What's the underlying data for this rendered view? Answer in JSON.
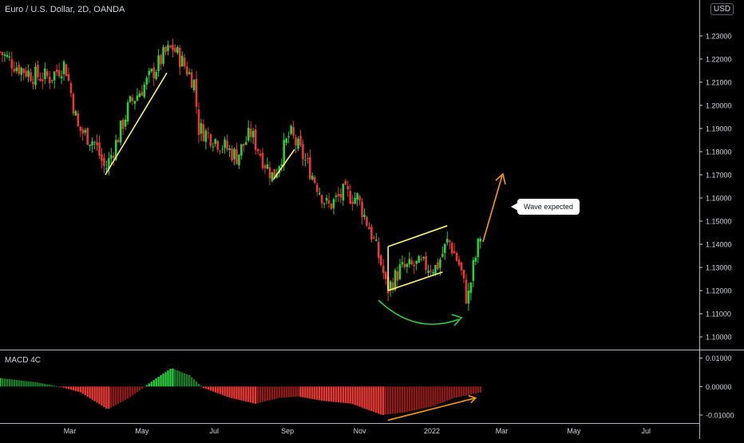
{
  "header": {
    "symbol_title": "Euro / U.S. Dollar, 2D, OANDA",
    "currency": "USD"
  },
  "indicator": {
    "title": "MACD 4C"
  },
  "annotation": {
    "text": "Wave expected"
  },
  "colors": {
    "background": "#000000",
    "up_candle": "#26a69a",
    "up_bright": "#2ecc40",
    "down_candle": "#e53935",
    "trendline": "#fff176",
    "curve_arrow": "#2ecc40",
    "expected_arrow": "#ff9800",
    "divergence_line": "#ff9800",
    "axis_text": "#d1d4dc",
    "separator": "#d1d4dc"
  },
  "chart_data": [
    {
      "type": "candlestick",
      "title": "Euro / U.S. Dollar, 2D, OANDA",
      "y_axis": {
        "position": "right",
        "ticks": [
          "1.23000",
          "1.22000",
          "1.21000",
          "1.20000",
          "1.19000",
          "1.18000",
          "1.17000",
          "1.16000",
          "1.15000",
          "1.14000",
          "1.13000",
          "1.12000",
          "1.11000",
          "1.10000"
        ],
        "ylim": [
          1.0945,
          1.2455
        ]
      },
      "x_axis": {
        "ticks": [
          "Mar",
          "May",
          "Jul",
          "Sep",
          "Nov",
          "2022",
          "Mar",
          "May",
          "Jul"
        ],
        "tick_dates": [
          "2021-03-01",
          "2021-05-01",
          "2021-07-01",
          "2021-09-01",
          "2021-11-01",
          "2022-01-01",
          "2022-03-01",
          "2022-05-01",
          "2022-07-01"
        ],
        "range": [
          "2021-01-01",
          "2022-08-15"
        ]
      },
      "close_series": [
        [
          "2021-01-01",
          1.223
        ],
        [
          "2021-01-15",
          1.217
        ],
        [
          "2021-01-29",
          1.213
        ],
        [
          "2021-02-12",
          1.212
        ],
        [
          "2021-02-25",
          1.218
        ],
        [
          "2021-03-08",
          1.19
        ],
        [
          "2021-03-22",
          1.184
        ],
        [
          "2021-03-31",
          1.172
        ],
        [
          "2021-04-10",
          1.185
        ],
        [
          "2021-04-20",
          1.2
        ],
        [
          "2021-05-05",
          1.21
        ],
        [
          "2021-05-20",
          1.222
        ],
        [
          "2021-05-27",
          1.225
        ],
        [
          "2021-06-05",
          1.218
        ],
        [
          "2021-06-14",
          1.21
        ],
        [
          "2021-06-18",
          1.19
        ],
        [
          "2021-06-30",
          1.186
        ],
        [
          "2021-07-10",
          1.182
        ],
        [
          "2021-07-20",
          1.178
        ],
        [
          "2021-08-01",
          1.188
        ],
        [
          "2021-08-12",
          1.176
        ],
        [
          "2021-08-20",
          1.169
        ],
        [
          "2021-09-03",
          1.188
        ],
        [
          "2021-09-12",
          1.18
        ],
        [
          "2021-09-20",
          1.172
        ],
        [
          "2021-10-05",
          1.156
        ],
        [
          "2021-10-18",
          1.162
        ],
        [
          "2021-10-30",
          1.16
        ],
        [
          "2021-11-10",
          1.146
        ],
        [
          "2021-11-20",
          1.13
        ],
        [
          "2021-11-24",
          1.12
        ],
        [
          "2021-12-05",
          1.129
        ],
        [
          "2021-12-20",
          1.131
        ],
        [
          "2022-01-05",
          1.13
        ],
        [
          "2022-01-15",
          1.142
        ],
        [
          "2022-01-25",
          1.13
        ],
        [
          "2022-01-31",
          1.115
        ],
        [
          "2022-02-05",
          1.13
        ],
        [
          "2022-02-12",
          1.146
        ]
      ],
      "trendlines": [
        {
          "from": [
            "2021-03-31",
            1.17
          ],
          "to": [
            "2021-05-22",
            1.214
          ]
        },
        {
          "from": [
            "2021-08-20",
            1.168
          ],
          "to": [
            "2021-09-07",
            1.181
          ]
        },
        {
          "from": [
            "2021-11-25",
            1.12
          ],
          "to": [
            "2022-01-10",
            1.128
          ]
        },
        {
          "from": [
            "2021-11-25",
            1.139
          ],
          "to": [
            "2022-01-14",
            1.148
          ]
        },
        {
          "from": [
            "2021-11-25",
            1.12
          ],
          "to": [
            "2021-11-25",
            1.139
          ]
        }
      ]
    },
    {
      "type": "bar",
      "title": "MACD 4C",
      "y_axis": {
        "position": "right",
        "ticks": [
          "0.01000",
          "0.00000",
          "-0.01000"
        ],
        "ylim": [
          -0.0128,
          0.0124
        ]
      },
      "histogram": [
        [
          "2021-01-01",
          0.003
        ],
        [
          "2021-02-01",
          0.0015
        ],
        [
          "2021-02-20",
          0.0
        ],
        [
          "2021-03-10",
          -0.002
        ],
        [
          "2021-04-02",
          -0.008
        ],
        [
          "2021-04-20",
          -0.004
        ],
        [
          "2021-05-10",
          0.002
        ],
        [
          "2021-05-26",
          0.0065
        ],
        [
          "2021-06-10",
          0.004
        ],
        [
          "2021-06-22",
          -0.0005
        ],
        [
          "2021-07-15",
          -0.004
        ],
        [
          "2021-08-05",
          -0.006
        ],
        [
          "2021-08-25",
          -0.004
        ],
        [
          "2021-09-10",
          -0.0035
        ],
        [
          "2021-10-01",
          -0.005
        ],
        [
          "2021-10-25",
          -0.006
        ],
        [
          "2021-11-20",
          -0.01
        ],
        [
          "2021-12-10",
          -0.009
        ],
        [
          "2022-01-01",
          -0.007
        ],
        [
          "2022-01-20",
          -0.004
        ],
        [
          "2022-02-12",
          -0.002
        ]
      ],
      "divergence_line": {
        "from": [
          "2021-11-25",
          -0.0118
        ],
        "to": [
          "2022-02-07",
          -0.004
        ]
      }
    }
  ]
}
